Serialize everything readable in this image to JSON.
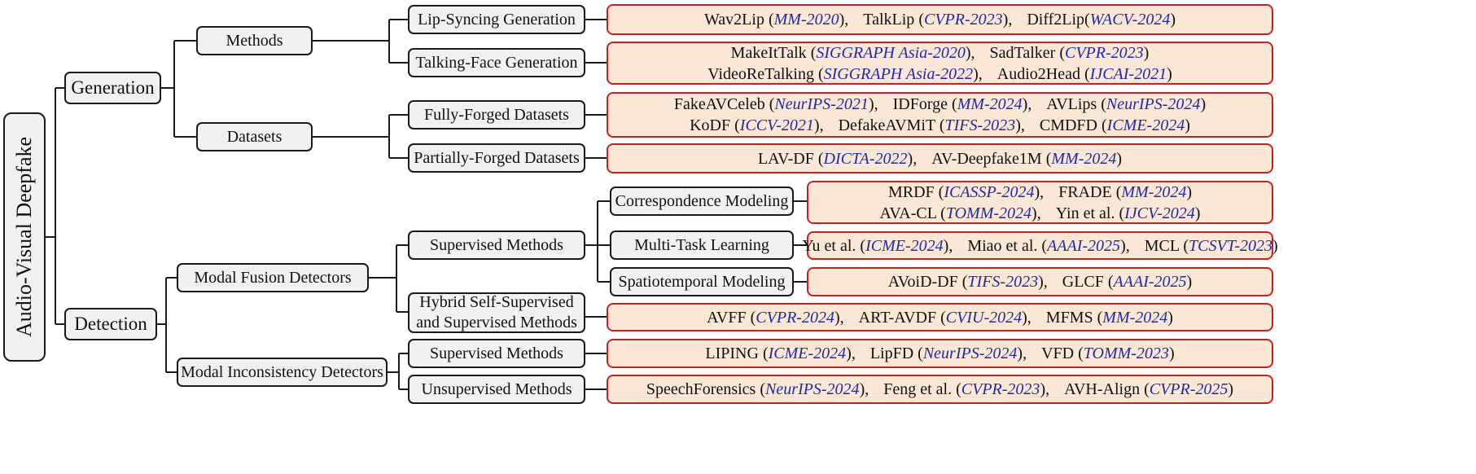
{
  "root": "Audio-Visual Deepfake",
  "generation": {
    "label": "Generation",
    "methods": {
      "label": "Methods",
      "lip_sync": {
        "label": "Lip-Syncing Generation",
        "lines": [
          [
            {
              "n": "Wav2Lip ",
              "v": "MM-2020",
              "t": "",
              "s": ""
            },
            {
              "n": "TalkLip ",
              "v": "CVPR-2023",
              "t": "",
              "s": ""
            },
            {
              "n": "Diff2Lip",
              "v": "WACV-2024",
              "t": "",
              "s": ""
            }
          ]
        ]
      },
      "talking_face": {
        "label": "Talking-Face Generation",
        "lines": [
          [
            {
              "n": "MakeItTalk ",
              "v": "SIGGRAPH Asia-2020",
              "t": "",
              "s": ""
            },
            {
              "n": "SadTalker ",
              "v": "CVPR-2023",
              "t": "",
              "s": ""
            }
          ],
          [
            {
              "n": "VideoReTalking ",
              "v": "SIGGRAPH Asia-2022",
              "t": "",
              "s": ""
            },
            {
              "n": "Audio2Head ",
              "v": "IJCAI-2021",
              "t": "",
              "s": ""
            }
          ]
        ]
      }
    },
    "datasets": {
      "label": "Datasets",
      "fully": {
        "label": "Fully-Forged Datasets",
        "lines": [
          [
            {
              "n": "FakeAVCeleb ",
              "v": "NeurIPS-2021",
              "t": "",
              "s": ""
            },
            {
              "n": "IDForge ",
              "v": "MM-2024",
              "t": "",
              "s": ""
            },
            {
              "n": "AVLips ",
              "v": "NeurIPS-2024",
              "t": "",
              "s": ""
            }
          ],
          [
            {
              "n": "KoDF ",
              "v": "ICCV-2021",
              "t": "",
              "s": ""
            },
            {
              "n": "DefakeAVMiT ",
              "v": "TIFS-2023",
              "t": "",
              "s": ""
            },
            {
              "n": "CMDFD ",
              "v": "ICME-2024",
              "t": "",
              "s": ""
            }
          ]
        ]
      },
      "partially": {
        "label": "Partially-Forged Datasets",
        "lines": [
          [
            {
              "n": "LAV-DF ",
              "v": "DICTA-2022",
              "t": "",
              "s": ""
            },
            {
              "n": "AV-Deepfake1M ",
              "v": "MM-2024",
              "t": "",
              "s": ""
            }
          ]
        ]
      }
    }
  },
  "detection": {
    "label": "Detection",
    "fusion": {
      "label": "Modal Fusion Detectors",
      "supervised": {
        "label": "Supervised Methods",
        "correspondence": {
          "label": "Correspondence Modeling",
          "lines": [
            [
              {
                "n": "MRDF ",
                "v": "ICASSP-2024",
                "t": "",
                "s": ""
              },
              {
                "n": "FRADE ",
                "v": "MM-2024",
                "t": "",
                "s": ""
              }
            ],
            [
              {
                "n": "AVA-CL ",
                "v": "TOMM-2024",
                "t": "",
                "s": ""
              },
              {
                "n": "Yin et al. ",
                "v": "IJCV-2024",
                "t": "",
                "s": ""
              }
            ]
          ]
        },
        "multitask": {
          "label": "Multi-Task Learning",
          "lines": [
            [
              {
                "n": "Yu et al. ",
                "v": "ICME-2024",
                "t": "",
                "s": ""
              },
              {
                "n": "Miao et al. ",
                "v": "AAAI-2025",
                "t": "",
                "s": ""
              },
              {
                "n": "MCL ",
                "v": "TCSVT-2023",
                "t": "",
                "s": ""
              }
            ]
          ]
        },
        "spatiotemporal": {
          "label": "Spatiotemporal Modeling",
          "lines": [
            [
              {
                "n": "AVoiD-DF ",
                "v": "TIFS-2023",
                "t": "",
                "s": ""
              },
              {
                "n": "GLCF ",
                "v": "AAAI-2025",
                "t": "",
                "s": ""
              }
            ]
          ]
        }
      },
      "hybrid": {
        "label_line1": "Hybrid Self-Supervised",
        "label_line2": "and Supervised Methods",
        "lines": [
          [
            {
              "n": "AVFF ",
              "v": "CVPR-2024",
              "t": "",
              "s": ""
            },
            {
              "n": "ART-AVDF ",
              "v": "CVIU-2024",
              "t": "",
              "s": ""
            },
            {
              "n": "MFMS ",
              "v": "MM-2024",
              "t": "",
              "s": ""
            }
          ]
        ]
      }
    },
    "inconsistency": {
      "label": "Modal Inconsistency Detectors",
      "supervised": {
        "label": "Supervised Methods",
        "lines": [
          [
            {
              "n": "LIPING ",
              "v": "ICME-2024",
              "t": "",
              "s": ""
            },
            {
              "n": "LipFD ",
              "v": "NeurIPS-2024",
              "t": "",
              "s": ""
            },
            {
              "n": "VFD ",
              "v": "TOMM-2023",
              "t": "",
              "s": ""
            }
          ]
        ]
      },
      "unsupervised": {
        "label": "Unsupervised Methods",
        "lines": [
          [
            {
              "n": "SpeechForensics ",
              "v": "NeurIPS-2024",
              "t": "",
              "s": ""
            },
            {
              "n": "Feng et al. ",
              "v": "CVPR-2023",
              "t": "",
              "s": ""
            },
            {
              "n": "AVH-Align ",
              "v": "CVPR-2025",
              "t": "",
              "s": ""
            }
          ]
        ]
      }
    }
  }
}
